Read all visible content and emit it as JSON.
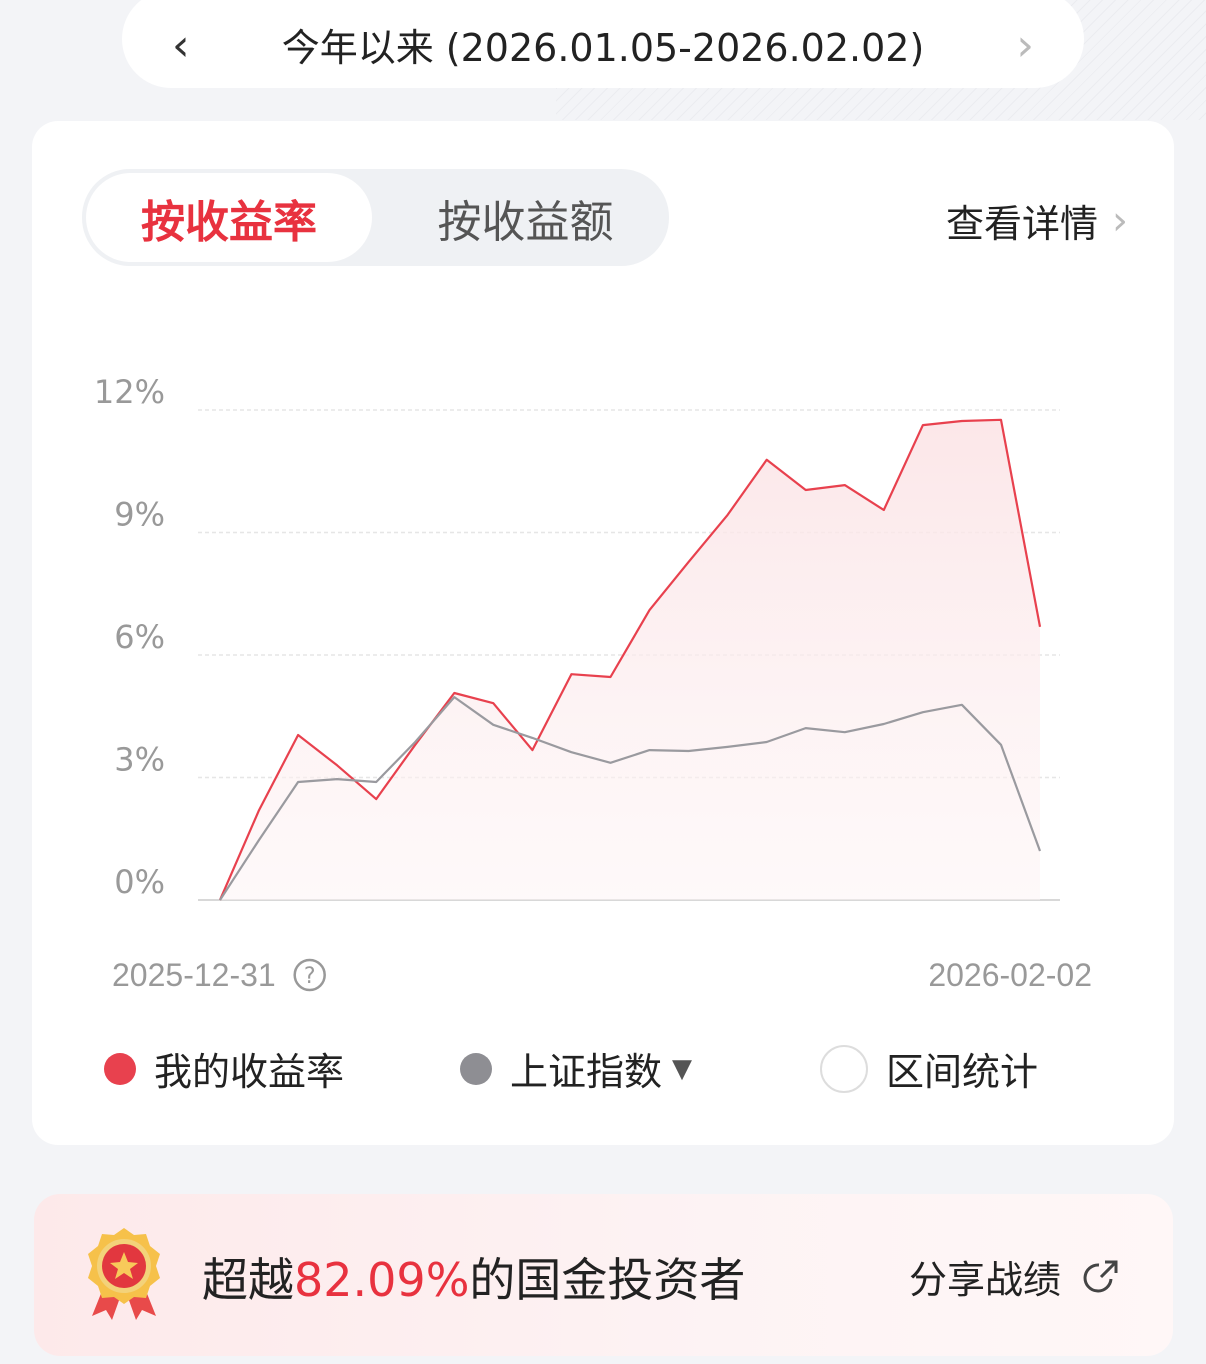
{
  "period": {
    "title": "今年以来 (2026.01.05-2026.02.02)"
  },
  "tabs": [
    {
      "label": "按收益率",
      "active": true
    },
    {
      "label": "按收益额",
      "active": false
    }
  ],
  "detail_link": "查看详情",
  "chart_data": {
    "type": "line",
    "ylim": [
      0,
      12
    ],
    "yticks": [
      "12%",
      "9%",
      "6%",
      "3%",
      "0%"
    ],
    "ytick_values": [
      12,
      9,
      6,
      3,
      0
    ],
    "x_start_label": "2025-12-31",
    "x_end_label": "2026-02-02",
    "grid": true,
    "series": [
      {
        "name": "我的收益率",
        "color": "#e8414e",
        "fill": true,
        "values": [
          0,
          2.2,
          4.04,
          3.3,
          2.47,
          3.8,
          5.07,
          4.82,
          3.67,
          5.53,
          5.46,
          7.1,
          8.28,
          9.43,
          10.78,
          10.04,
          10.16,
          9.55,
          11.63,
          11.73,
          11.76,
          6.69
        ]
      },
      {
        "name": "上证指数",
        "color": "#9a9a9f",
        "fill": false,
        "values": [
          0,
          1.47,
          2.89,
          2.96,
          2.89,
          3.87,
          4.97,
          4.29,
          3.97,
          3.62,
          3.36,
          3.67,
          3.65,
          3.75,
          3.87,
          4.21,
          4.11,
          4.31,
          4.6,
          4.78,
          3.8,
          1.2
        ]
      }
    ]
  },
  "legend": [
    {
      "label": "我的收益率",
      "color": "#e8414e"
    },
    {
      "label": "上证指数",
      "color": "#8e8e93",
      "dropdown": true
    },
    {
      "label": "区间统计",
      "toggle": false
    }
  ],
  "banner": {
    "prefix": "超越",
    "percent": "82.09%",
    "suffix": "的国金投资者",
    "share": "分享战绩"
  }
}
